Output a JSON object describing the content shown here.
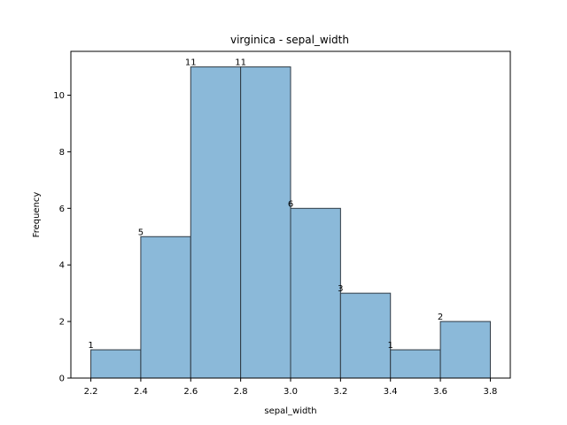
{
  "chart_data": {
    "type": "bar",
    "title": "virginica - sepal_width",
    "xlabel": "sepal_width",
    "ylabel": "Frequency",
    "bins": [
      {
        "start": 2.2,
        "end": 2.4,
        "count": 1
      },
      {
        "start": 2.4,
        "end": 2.6,
        "count": 5
      },
      {
        "start": 2.6,
        "end": 2.8,
        "count": 11
      },
      {
        "start": 2.8,
        "end": 3.0,
        "count": 11
      },
      {
        "start": 3.0,
        "end": 3.2,
        "count": 6
      },
      {
        "start": 3.2,
        "end": 3.4,
        "count": 3
      },
      {
        "start": 3.4,
        "end": 3.6,
        "count": 1
      },
      {
        "start": 3.6,
        "end": 3.8,
        "count": 2
      }
    ],
    "bar_labels": [
      "1",
      "5",
      "11",
      "11",
      "6",
      "3",
      "1",
      "2"
    ],
    "xlim": [
      2.12,
      3.88
    ],
    "ylim": [
      0,
      11.55
    ],
    "xticks": [
      "2.2",
      "2.4",
      "2.6",
      "2.8",
      "3.0",
      "3.2",
      "3.4",
      "3.6",
      "3.8"
    ],
    "yticks": [
      "0",
      "2",
      "4",
      "6",
      "8",
      "10"
    ],
    "grid": false,
    "bar_color": "#8bb9d9",
    "edge_color": "#2f3a44"
  }
}
